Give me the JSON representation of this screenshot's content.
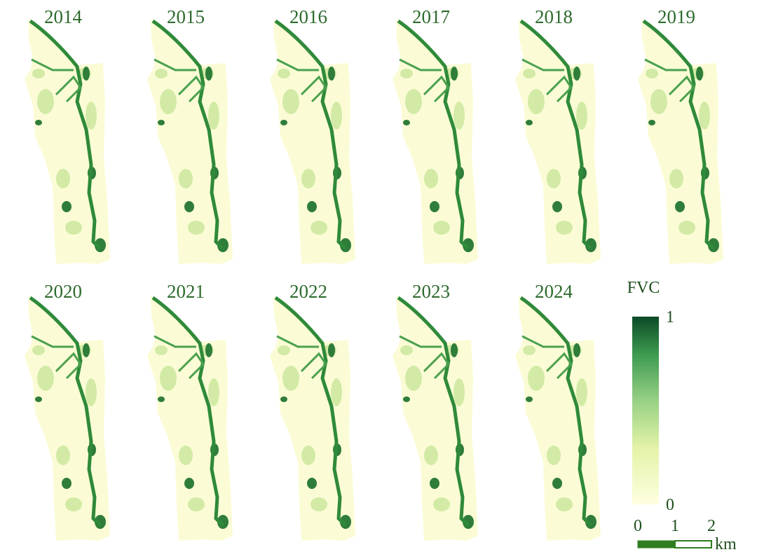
{
  "panels": [
    {
      "year": "2014"
    },
    {
      "year": "2015"
    },
    {
      "year": "2016"
    },
    {
      "year": "2017"
    },
    {
      "year": "2018"
    },
    {
      "year": "2019"
    },
    {
      "year": "2020"
    },
    {
      "year": "2021"
    },
    {
      "year": "2022"
    },
    {
      "year": "2023"
    },
    {
      "year": "2024"
    }
  ],
  "legend": {
    "title": "FVC",
    "max_label": "1",
    "min_label": "0"
  },
  "scale_bar": {
    "labels": [
      "0",
      "1",
      "2"
    ],
    "unit": "km"
  }
}
